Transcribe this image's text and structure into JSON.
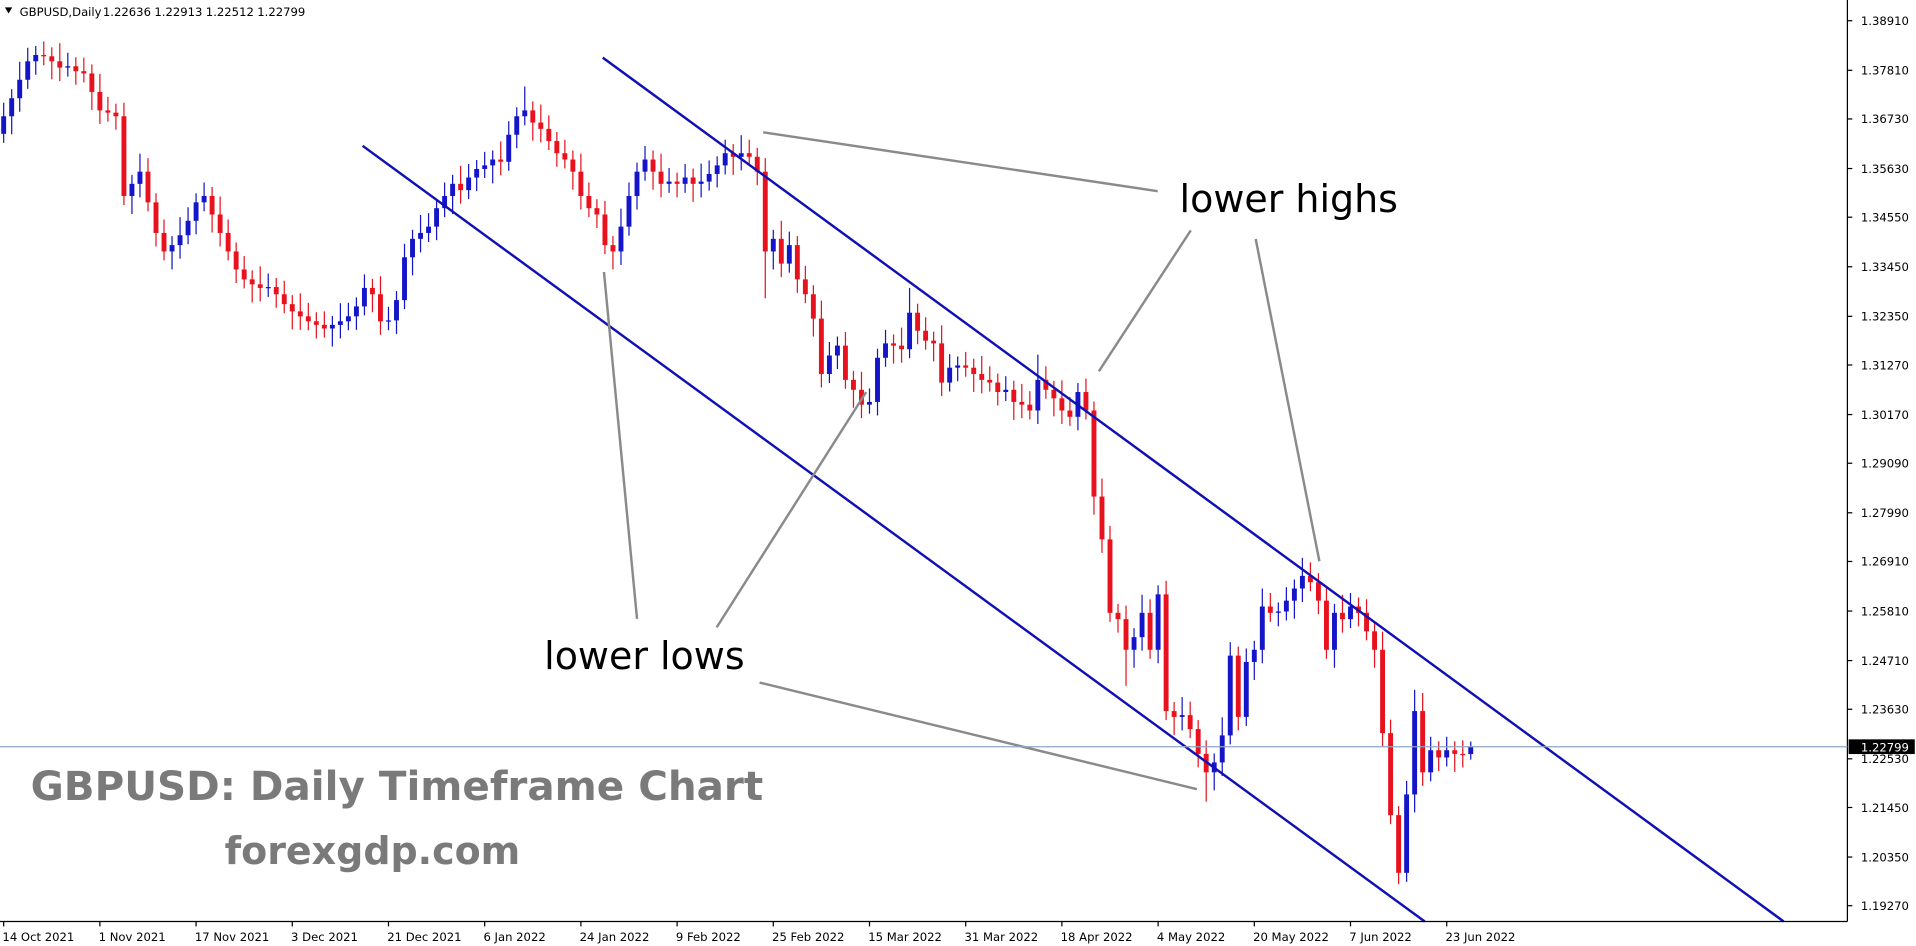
{
  "chart_data": {
    "type": "candlestick",
    "title": "GBPUSD,Daily",
    "categories": [
      "14 Oct 2021",
      null,
      null,
      null,
      null,
      null,
      null,
      null,
      null,
      null,
      null,
      null,
      "1 Nov 2021",
      null,
      null,
      null,
      null,
      null,
      null,
      null,
      null,
      null,
      null,
      null,
      "17 Nov 2021",
      null,
      null,
      null,
      null,
      null,
      null,
      null,
      null,
      null,
      null,
      null,
      "3 Dec 2021",
      null,
      null,
      null,
      null,
      null,
      null,
      null,
      null,
      null,
      null,
      null,
      "21 Dec 2021",
      null,
      null,
      null,
      null,
      null,
      null,
      null,
      null,
      null,
      null,
      null,
      "6 Jan 2022",
      null,
      null,
      null,
      null,
      null,
      null,
      null,
      null,
      null,
      null,
      null,
      "24 Jan 2022",
      null,
      null,
      null,
      null,
      null,
      null,
      null,
      null,
      null,
      null,
      null,
      "9 Feb 2022",
      null,
      null,
      null,
      null,
      null,
      null,
      null,
      null,
      null,
      null,
      null,
      "25 Feb 2022",
      null,
      null,
      null,
      null,
      null,
      null,
      null,
      null,
      null,
      null,
      null,
      "15 Mar 2022",
      null,
      null,
      null,
      null,
      null,
      null,
      null,
      null,
      null,
      null,
      null,
      "31 Mar 2022",
      null,
      null,
      null,
      null,
      null,
      null,
      null,
      null,
      null,
      null,
      null,
      "18 Apr 2022",
      null,
      null,
      null,
      null,
      null,
      null,
      null,
      null,
      null,
      null,
      null,
      "4 May 2022",
      null,
      null,
      null,
      null,
      null,
      null,
      null,
      null,
      null,
      null,
      null,
      "20 May 2022",
      null,
      null,
      null,
      null,
      null,
      null,
      null,
      null,
      null,
      null,
      null,
      "7 Jun 2022",
      null,
      null,
      null,
      null,
      null,
      null,
      null,
      null,
      null,
      null,
      null,
      "23 Jun 2022",
      null,
      null,
      null
    ],
    "open": [
      1.364,
      1.3679,
      1.3719,
      1.376,
      1.3801,
      1.3815,
      1.3812,
      1.3801,
      1.3787,
      1.379,
      1.3779,
      1.3774,
      1.3733,
      1.3692,
      1.3687,
      1.3679,
      1.3502,
      1.3529,
      1.3556,
      1.3488,
      1.342,
      1.3379,
      1.3393,
      1.3415,
      1.3447,
      1.3488,
      1.3502,
      1.3461,
      1.342,
      1.3379,
      1.3339,
      1.3317,
      1.3306,
      1.3298,
      1.33,
      1.3284,
      1.3262,
      1.3246,
      1.3235,
      1.3224,
      1.3216,
      1.3208,
      1.3216,
      1.3224,
      1.3235,
      1.3257,
      1.3298,
      1.3284,
      1.3224,
      1.3226,
      1.3271,
      1.3366,
      1.3407,
      1.342,
      1.3434,
      1.3475,
      1.3502,
      1.3529,
      1.3515,
      1.3543,
      1.3562,
      1.357,
      1.3583,
      1.3578,
      1.3638,
      1.3679,
      1.3692,
      1.3665,
      1.3651,
      1.3624,
      1.3597,
      1.3583,
      1.3556,
      1.3502,
      1.3475,
      1.3461,
      1.3393,
      1.3379,
      1.3434,
      1.3502,
      1.3556,
      1.3583,
      1.3556,
      1.3529,
      1.3534,
      1.3529,
      1.3543,
      1.3529,
      1.3534,
      1.3551,
      1.357,
      1.3597,
      1.3589,
      1.3597,
      1.3589,
      1.3556,
      1.3379,
      1.3407,
      1.3352,
      1.3393,
      1.3317,
      1.3284,
      1.323,
      1.3107,
      1.3148,
      1.317,
      1.3094,
      1.3072,
      1.3039,
      1.3045,
      1.3143,
      1.3175,
      1.317,
      1.3162,
      1.3243,
      1.3203,
      1.3181,
      1.3175,
      1.3088,
      1.3121,
      1.3126,
      1.3121,
      1.3107,
      1.3094,
      1.3088,
      1.3067,
      1.3072,
      1.3045,
      1.3039,
      1.3026,
      1.3094,
      1.3072,
      1.3053,
      1.3026,
      1.3012,
      1.3067,
      1.3026,
      1.2835,
      1.274,
      1.2577,
      1.2563,
      1.2495,
      1.2523,
      1.2577,
      1.2495,
      1.2618,
      1.2359,
      1.2346,
      1.235,
      1.2319,
      1.2264,
      1.2223,
      1.2245,
      1.2305,
      1.2482,
      1.2346,
      1.2468,
      1.2495,
      1.2591,
      1.2577,
      1.258,
      1.2604,
      1.2631,
      1.2659,
      1.2645,
      1.2604,
      1.2495,
      1.2577,
      1.2563,
      1.2591,
      1.2577,
      1.2536,
      1.2495,
      1.231,
      1.2128,
      1.2,
      1.2174,
      1.2359,
      1.2223,
      1.2272,
      1.2256,
      1.2272,
      1.2264,
      1.22636
    ],
    "high": [
      1.3709,
      1.3739,
      1.38,
      1.3831,
      1.3835,
      1.3845,
      1.3832,
      1.3841,
      1.382,
      1.381,
      1.3809,
      1.3794,
      1.3773,
      1.3722,
      1.3707,
      1.3709,
      1.3549,
      1.3596,
      1.3586,
      1.3508,
      1.345,
      1.3413,
      1.3455,
      1.3477,
      1.3508,
      1.3532,
      1.3522,
      1.3501,
      1.345,
      1.3399,
      1.3369,
      1.3337,
      1.3346,
      1.333,
      1.332,
      1.3314,
      1.3282,
      1.3286,
      1.3265,
      1.3244,
      1.3246,
      1.3236,
      1.3264,
      1.3265,
      1.3277,
      1.3328,
      1.3318,
      1.3324,
      1.3256,
      1.3291,
      1.3396,
      1.3427,
      1.346,
      1.3464,
      1.3495,
      1.3532,
      1.3549,
      1.3569,
      1.3573,
      1.3582,
      1.36,
      1.3603,
      1.3623,
      1.3668,
      1.3699,
      1.3745,
      1.3712,
      1.3705,
      1.3681,
      1.3644,
      1.3627,
      1.3603,
      1.3596,
      1.3532,
      1.3495,
      1.3491,
      1.3413,
      1.3474,
      1.3532,
      1.3576,
      1.3613,
      1.3603,
      1.3596,
      1.3564,
      1.3554,
      1.3573,
      1.3563,
      1.3574,
      1.3581,
      1.359,
      1.3627,
      1.3617,
      1.3637,
      1.3627,
      1.3609,
      1.3586,
      1.3427,
      1.3447,
      1.3423,
      1.3413,
      1.3347,
      1.3304,
      1.327,
      1.3178,
      1.319,
      1.32,
      1.3114,
      1.3112,
      1.3075,
      1.3163,
      1.3205,
      1.3195,
      1.321,
      1.3298,
      1.3263,
      1.3233,
      1.3201,
      1.3215,
      1.3151,
      1.3146,
      1.3156,
      1.3141,
      1.3147,
      1.3124,
      1.3108,
      1.3102,
      1.3092,
      1.3085,
      1.3069,
      1.315,
      1.3124,
      1.3092,
      1.3093,
      1.3056,
      1.3087,
      1.3097,
      1.3046,
      1.2875,
      1.277,
      1.2597,
      1.2593,
      1.2543,
      1.2617,
      1.2607,
      1.2638,
      1.2648,
      1.2379,
      1.239,
      1.238,
      1.2339,
      1.2294,
      1.2265,
      1.2345,
      1.2512,
      1.2502,
      1.2498,
      1.2515,
      1.2631,
      1.2621,
      1.26,
      1.2634,
      1.2651,
      1.2699,
      1.2689,
      1.2665,
      1.2634,
      1.2597,
      1.2617,
      1.2621,
      1.2611,
      1.2607,
      1.2556,
      1.2535,
      1.234,
      1.2148,
      1.2204,
      1.2406,
      1.2399,
      1.2302,
      1.2292,
      1.2302,
      1.2292,
      1.2294,
      1.22913
    ],
    "low": [
      1.362,
      1.3639,
      1.3689,
      1.374,
      1.3771,
      1.3792,
      1.3761,
      1.3757,
      1.3767,
      1.3749,
      1.3754,
      1.3693,
      1.3662,
      1.3667,
      1.3649,
      1.3482,
      1.3462,
      1.3499,
      1.3468,
      1.339,
      1.3359,
      1.3339,
      1.3363,
      1.3395,
      1.3417,
      1.3468,
      1.3421,
      1.339,
      1.3359,
      1.3309,
      1.3297,
      1.3266,
      1.3268,
      1.3278,
      1.3254,
      1.3242,
      1.3206,
      1.3205,
      1.3204,
      1.3186,
      1.3188,
      1.3168,
      1.3186,
      1.3204,
      1.3205,
      1.3237,
      1.3244,
      1.3194,
      1.3204,
      1.3196,
      1.3251,
      1.3326,
      1.3377,
      1.34,
      1.3404,
      1.3455,
      1.3462,
      1.3485,
      1.3495,
      1.3513,
      1.3542,
      1.353,
      1.3548,
      1.3558,
      1.3608,
      1.3659,
      1.3625,
      1.3621,
      1.3604,
      1.3567,
      1.3563,
      1.3516,
      1.3472,
      1.3455,
      1.3431,
      1.3373,
      1.3339,
      1.3349,
      1.3414,
      1.3472,
      1.3536,
      1.3516,
      1.3499,
      1.3509,
      1.3499,
      1.3509,
      1.3489,
      1.3499,
      1.3514,
      1.3521,
      1.355,
      1.3549,
      1.3559,
      1.3569,
      1.3526,
      1.3275,
      1.3339,
      1.3322,
      1.3332,
      1.3287,
      1.3264,
      1.319,
      1.3077,
      1.3087,
      1.3118,
      1.3074,
      1.3032,
      1.3009,
      1.3019,
      1.3015,
      1.3123,
      1.313,
      1.3132,
      1.3142,
      1.3173,
      1.3161,
      1.3135,
      1.3058,
      1.3068,
      1.3091,
      1.3101,
      1.3067,
      1.3064,
      1.3068,
      1.3037,
      1.3047,
      1.3005,
      1.3009,
      1.3006,
      1.2996,
      1.3052,
      1.3013,
      1.2996,
      1.2992,
      1.2982,
      1.3006,
      1.2795,
      1.271,
      1.2557,
      1.2533,
      1.2415,
      1.2455,
      1.2493,
      1.2475,
      1.2465,
      1.2339,
      1.2306,
      1.2316,
      1.2299,
      1.2234,
      1.2158,
      1.2183,
      1.2215,
      1.2285,
      1.2316,
      1.2326,
      1.2428,
      1.2465,
      1.2557,
      1.2547,
      1.256,
      1.2564,
      1.2601,
      1.2625,
      1.2574,
      1.2475,
      1.2455,
      1.2533,
      1.2543,
      1.2547,
      1.2516,
      1.2455,
      1.228,
      1.2108,
      1.1975,
      1.198,
      1.2134,
      1.2193,
      1.2203,
      1.2226,
      1.2236,
      1.2224,
      1.2234,
      1.22512
    ],
    "close": [
      1.3679,
      1.3719,
      1.376,
      1.3801,
      1.3815,
      1.3812,
      1.3801,
      1.3787,
      1.379,
      1.3779,
      1.3774,
      1.3733,
      1.3692,
      1.3687,
      1.3679,
      1.3502,
      1.3529,
      1.3556,
      1.3488,
      1.342,
      1.3379,
      1.3393,
      1.3415,
      1.3447,
      1.3488,
      1.3502,
      1.3461,
      1.342,
      1.3379,
      1.3339,
      1.3317,
      1.3306,
      1.3298,
      1.33,
      1.3284,
      1.3262,
      1.3246,
      1.3235,
      1.3224,
      1.3216,
      1.3208,
      1.3216,
      1.3224,
      1.3235,
      1.3257,
      1.3298,
      1.3284,
      1.3224,
      1.3226,
      1.3271,
      1.3366,
      1.3407,
      1.342,
      1.3434,
      1.3475,
      1.3502,
      1.3529,
      1.3515,
      1.3543,
      1.3562,
      1.357,
      1.3583,
      1.3578,
      1.3638,
      1.3679,
      1.3692,
      1.3665,
      1.3651,
      1.3624,
      1.3597,
      1.3583,
      1.3556,
      1.3502,
      1.3475,
      1.3461,
      1.3393,
      1.3379,
      1.3434,
      1.3502,
      1.3556,
      1.3583,
      1.3556,
      1.3529,
      1.3534,
      1.3529,
      1.3543,
      1.3529,
      1.3534,
      1.3551,
      1.357,
      1.3597,
      1.3589,
      1.3597,
      1.3589,
      1.3556,
      1.3379,
      1.3407,
      1.3352,
      1.3393,
      1.3317,
      1.3284,
      1.323,
      1.3107,
      1.3148,
      1.317,
      1.3094,
      1.3072,
      1.3039,
      1.3045,
      1.3143,
      1.3175,
      1.317,
      1.3162,
      1.3243,
      1.3203,
      1.3181,
      1.3175,
      1.3088,
      1.3121,
      1.3126,
      1.3121,
      1.3107,
      1.3094,
      1.3088,
      1.3067,
      1.3072,
      1.3045,
      1.3039,
      1.3026,
      1.3094,
      1.3072,
      1.3053,
      1.3026,
      1.3012,
      1.3067,
      1.3026,
      1.2835,
      1.274,
      1.2577,
      1.2563,
      1.2495,
      1.2523,
      1.2577,
      1.2495,
      1.2618,
      1.2359,
      1.2346,
      1.235,
      1.2319,
      1.2264,
      1.2223,
      1.2245,
      1.2305,
      1.2482,
      1.2346,
      1.2468,
      1.2495,
      1.2591,
      1.2577,
      1.258,
      1.2604,
      1.2631,
      1.2659,
      1.2645,
      1.2604,
      1.2495,
      1.2577,
      1.2563,
      1.2591,
      1.2577,
      1.2536,
      1.2495,
      1.231,
      1.2128,
      1.2,
      1.2174,
      1.2359,
      1.2223,
      1.2272,
      1.2256,
      1.2272,
      1.2264,
      1.22636,
      1.22799
    ],
    "up_color": "#1414c8",
    "down_color": "#e8121e",
    "price_line_color": "#8fa4c4",
    "ylim": [
      1.1892,
      1.3937
    ],
    "yticks": [
      {
        "value": 1.3891,
        "label": "1.38910"
      },
      {
        "value": 1.3781,
        "label": "1.37810"
      },
      {
        "value": 1.3673,
        "label": "1.36730"
      },
      {
        "value": 1.3563,
        "label": "1.35630"
      },
      {
        "value": 1.3455,
        "label": "1.34550"
      },
      {
        "value": 1.3345,
        "label": "1.33450"
      },
      {
        "value": 1.3235,
        "label": "1.32350"
      },
      {
        "value": 1.3127,
        "label": "1.31270"
      },
      {
        "value": 1.3017,
        "label": "1.30170"
      },
      {
        "value": 1.2909,
        "label": "1.29090"
      },
      {
        "value": 1.2799,
        "label": "1.27990"
      },
      {
        "value": 1.2691,
        "label": "1.26910"
      },
      {
        "value": 1.2581,
        "label": "1.25810"
      },
      {
        "value": 1.2471,
        "label": "1.24710"
      },
      {
        "value": 1.2363,
        "label": "1.23630"
      },
      {
        "value": 1.2253,
        "label": "1.22530"
      },
      {
        "value": 1.2145,
        "label": "1.21450"
      },
      {
        "value": 1.2035,
        "label": "1.20350"
      },
      {
        "value": 1.1927,
        "label": "1.19270"
      }
    ],
    "grid": false,
    "annotations": {
      "highs": "lower highs",
      "lows": "lower lows"
    },
    "watermark": {
      "title": "GBPUSD: Daily Timeframe Chart",
      "site": "forexgdp.com"
    }
  }
}
